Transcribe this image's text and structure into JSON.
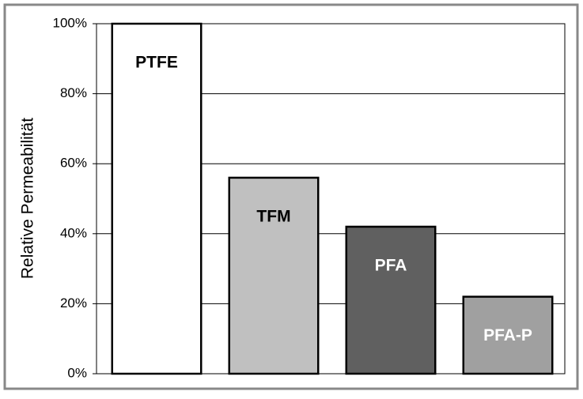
{
  "chart_data": {
    "type": "bar",
    "y_label": "Relative Permeabilität",
    "categories": [
      "PTFE",
      "TFM",
      "PFA",
      "PFA-P"
    ],
    "values": [
      100,
      56,
      42,
      22
    ],
    "colors": [
      "#ffffff",
      "#c0c0c0",
      "#606060",
      "#a0a0a0"
    ],
    "label_colors": [
      "#000000",
      "#000000",
      "#ffffff",
      "#ffffff"
    ],
    "ylim": [
      0,
      100
    ],
    "yticks": [
      {
        "value": 0,
        "label": "0%"
      },
      {
        "value": 20,
        "label": "20%"
      },
      {
        "value": 40,
        "label": "40%"
      },
      {
        "value": 60,
        "label": "60%"
      },
      {
        "value": 80,
        "label": "80%"
      },
      {
        "value": 100,
        "label": "100%"
      }
    ],
    "grid": true
  }
}
